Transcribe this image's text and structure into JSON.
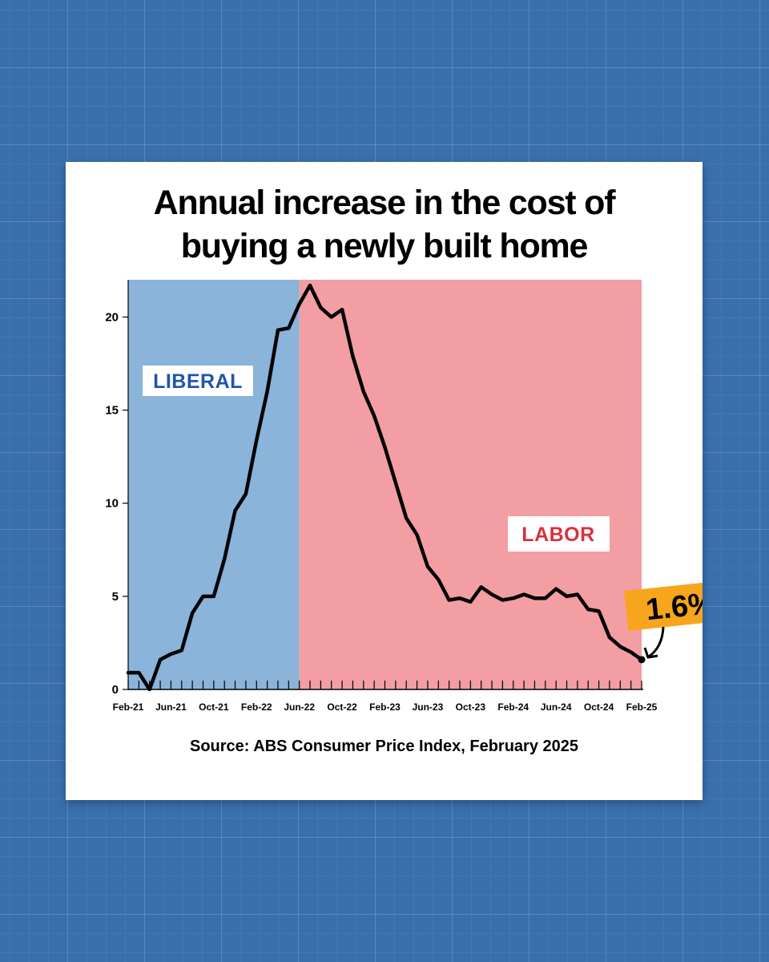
{
  "title_lines": [
    "Annual increase in the cost of",
    "buying a newly built home"
  ],
  "source": "Source: ABS Consumer Price Index, February 2025",
  "colors": {
    "background": "#3a6fae",
    "liberal_band": "#8ab4d9",
    "labor_band": "#f29ea2",
    "liberal_text": "#1f56a8",
    "labor_text": "#d8313c",
    "callout": "#f7a51c",
    "line": "#000000"
  },
  "chart_data": {
    "type": "line",
    "title": "Annual increase in the cost of buying a newly built home",
    "xlabel": "",
    "ylabel": "",
    "ylim": [
      0,
      22
    ],
    "yticks": [
      0,
      5,
      10,
      15,
      20
    ],
    "x_tick_labels": [
      "Feb-21",
      "Jun-21",
      "Oct-21",
      "Feb-22",
      "Jun-22",
      "Oct-22",
      "Feb-23",
      "Jun-23",
      "Oct-23",
      "Feb-24",
      "Jun-24",
      "Oct-24",
      "Feb-25"
    ],
    "x": [
      "Feb-21",
      "Mar-21",
      "Apr-21",
      "May-21",
      "Jun-21",
      "Jul-21",
      "Aug-21",
      "Sep-21",
      "Oct-21",
      "Nov-21",
      "Dec-21",
      "Jan-22",
      "Feb-22",
      "Mar-22",
      "Apr-22",
      "May-22",
      "Jun-22",
      "Jul-22",
      "Aug-22",
      "Sep-22",
      "Oct-22",
      "Nov-22",
      "Dec-22",
      "Jan-23",
      "Feb-23",
      "Mar-23",
      "Apr-23",
      "May-23",
      "Jun-23",
      "Jul-23",
      "Aug-23",
      "Sep-23",
      "Oct-23",
      "Nov-23",
      "Dec-23",
      "Jan-24",
      "Feb-24",
      "Mar-24",
      "Apr-24",
      "May-24",
      "Jun-24",
      "Jul-24",
      "Aug-24",
      "Sep-24",
      "Oct-24",
      "Nov-24",
      "Dec-24",
      "Jan-25",
      "Feb-25"
    ],
    "series": [
      {
        "values": [
          0.9,
          0.9,
          0.0,
          1.6,
          1.9,
          2.1,
          4.1,
          5.0,
          5.0,
          7.0,
          9.6,
          10.5,
          13.4,
          16.0,
          19.3,
          19.4,
          20.7,
          21.7,
          20.5,
          20.0,
          20.4,
          17.9,
          16.0,
          14.7,
          13.0,
          11.1,
          9.2,
          8.3,
          6.6,
          5.9,
          4.8,
          4.9,
          4.7,
          5.5,
          5.1,
          4.8,
          4.9,
          5.1,
          4.9,
          4.9,
          5.4,
          5.0,
          5.1,
          4.3,
          4.2,
          2.8,
          2.3,
          2.0,
          1.6
        ]
      }
    ],
    "regions": [
      {
        "label": "LIBERAL",
        "from": "Feb-21",
        "to": "Jun-22"
      },
      {
        "label": "LABOR",
        "from": "Jun-22",
        "to": "Feb-25"
      }
    ],
    "annotation": {
      "text": "1.6%",
      "at": "Feb-25",
      "value": 1.6
    },
    "grid": false,
    "legend": "none"
  }
}
